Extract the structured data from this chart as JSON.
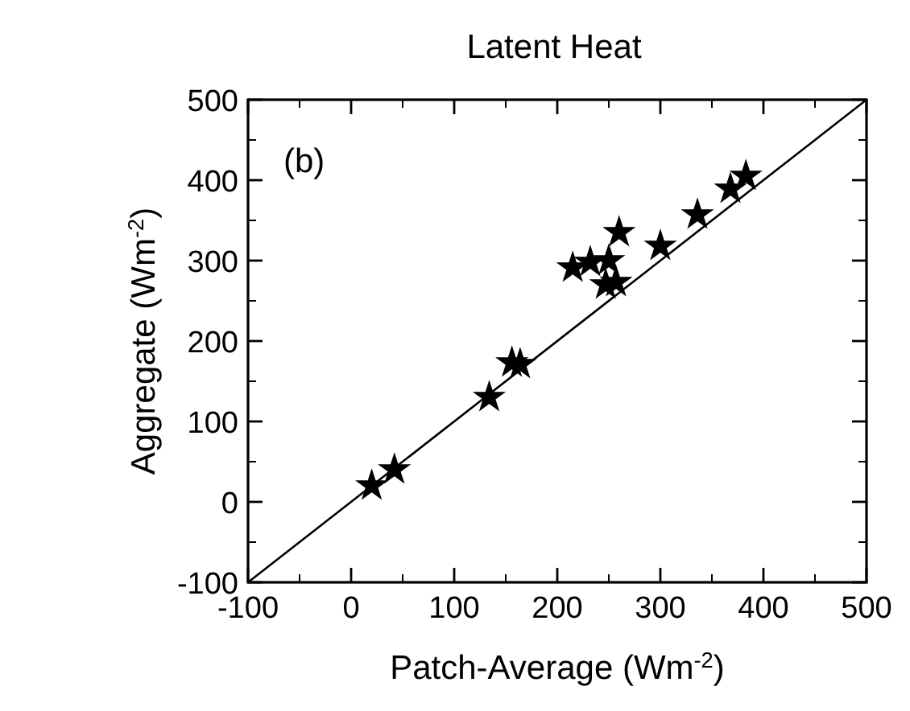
{
  "chart_data": {
    "type": "scatter",
    "title": "Latent Heat",
    "xlabel": "Patch-Average (Wm$^{-2}$)",
    "ylabel": "Aggregate (Wm$^{-2}$)",
    "annotations": [
      "(b)"
    ],
    "xlim": [
      -100,
      500
    ],
    "ylim": [
      -100,
      500
    ],
    "xticks": [
      -100,
      0,
      100,
      200,
      300,
      400,
      500
    ],
    "yticks": [
      -100,
      0,
      100,
      200,
      300,
      400,
      500
    ],
    "marker": "star",
    "grid": false,
    "series": [
      {
        "color": "#000000",
        "x": [
          20,
          42,
          134,
          156,
          164,
          215,
          232,
          250,
          247,
          257,
          260,
          300,
          336,
          368,
          383
        ],
        "values": [
          20,
          40,
          130,
          173,
          171,
          291,
          298,
          300,
          270,
          273,
          335,
          318,
          357,
          389,
          405
        ]
      },
      {
        "type": "line",
        "color": "#000000",
        "marker": "none",
        "x": [
          -100,
          500
        ],
        "values": [
          -100,
          500
        ]
      }
    ]
  }
}
